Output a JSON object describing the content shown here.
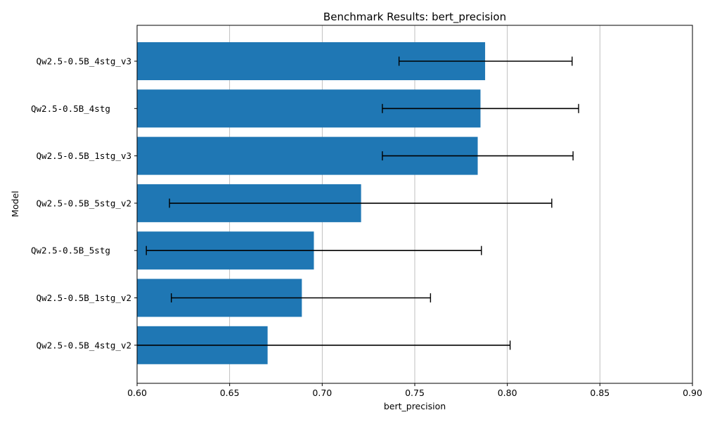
{
  "chart_data": {
    "type": "bar",
    "orientation": "horizontal",
    "title": "Benchmark Results: bert_precision",
    "xlabel": "bert_precision",
    "ylabel": "Model",
    "xlim": [
      0.6,
      0.9
    ],
    "xticks": [
      0.6,
      0.65,
      0.7,
      0.75,
      0.8,
      0.85,
      0.9
    ],
    "xtick_labels": [
      "0.60",
      "0.65",
      "0.70",
      "0.75",
      "0.80",
      "0.85",
      "0.90"
    ],
    "grid": "vertical",
    "bar_color": "#1f77b4",
    "error_color": "#000000",
    "categories": [
      "Qw2.5-0.5B_4stg_v3",
      "Qw2.5-0.5B_4stg    ",
      "Qw2.5-0.5B_1stg_v3",
      "Qw2.5-0.5B_5stg_v2",
      "Qw2.5-0.5B_5stg    ",
      "Qw2.5-0.5B_1stg_v2",
      "Qw2.5-0.5B_4stg_v2"
    ],
    "values": [
      0.788,
      0.7855,
      0.784,
      0.721,
      0.6955,
      0.689,
      0.6705
    ],
    "error_low": [
      0.7415,
      0.7325,
      0.7325,
      0.6175,
      0.605,
      0.6185,
      0.5395
    ],
    "error_high": [
      0.835,
      0.8385,
      0.8355,
      0.824,
      0.786,
      0.7585,
      0.8015
    ]
  }
}
